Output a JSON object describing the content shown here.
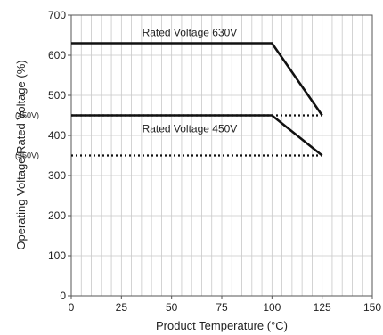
{
  "chart_data": {
    "type": "line",
    "xlabel": "Product Temperature (°C)",
    "ylabel": "Operating Voltage/Rated Voltage (%)",
    "xlim": [
      0,
      150
    ],
    "ylim": [
      0,
      700
    ],
    "x_ticks": [
      0,
      25,
      50,
      75,
      100,
      125,
      150
    ],
    "y_ticks": [
      0,
      100,
      200,
      300,
      400,
      500,
      600,
      700
    ],
    "grid": true,
    "minor_x_step": 5,
    "series": [
      {
        "name": "Rated Voltage 630V",
        "style": "solid",
        "points": [
          [
            0,
            630
          ],
          [
            100,
            630
          ],
          [
            125,
            450
          ]
        ]
      },
      {
        "name": "Rated Voltage 450V",
        "style": "solid",
        "points": [
          [
            0,
            450
          ],
          [
            100,
            450
          ],
          [
            125,
            350
          ]
        ]
      }
    ],
    "reference_lines": [
      {
        "label": "(450V)",
        "style": "dotted",
        "points": [
          [
            0,
            450
          ],
          [
            125,
            450
          ]
        ]
      },
      {
        "label": "(350V)",
        "style": "dotted",
        "points": [
          [
            0,
            350
          ],
          [
            125,
            350
          ]
        ]
      }
    ],
    "colors": {
      "line": "#111111",
      "grid": "#c8c8c8",
      "axis": "#555555"
    }
  }
}
